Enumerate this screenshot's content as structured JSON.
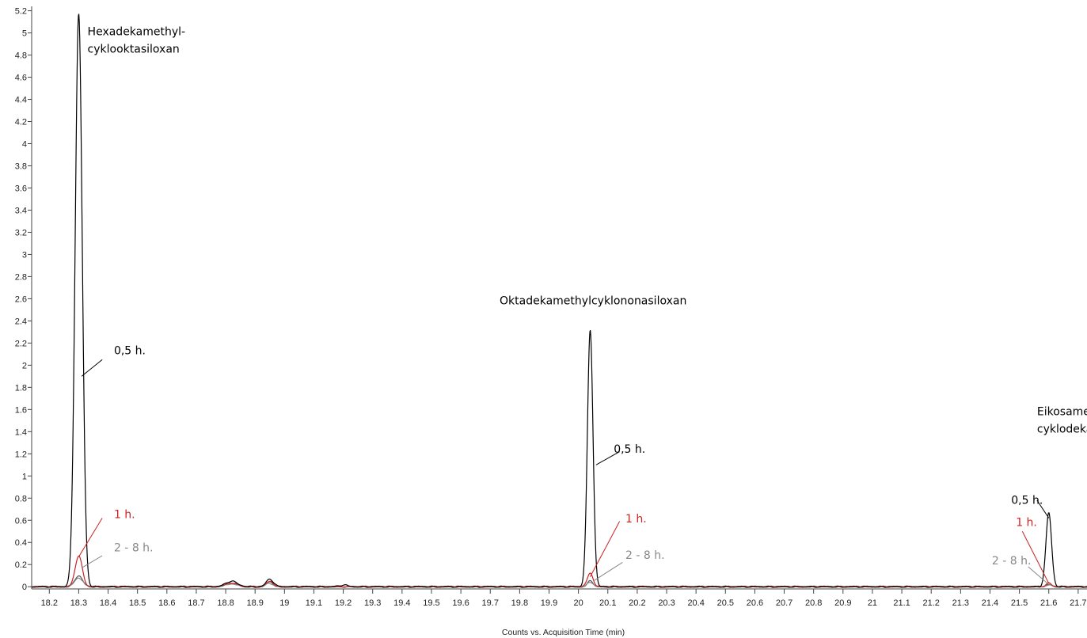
{
  "chart_data": {
    "type": "line",
    "xlabel": "Counts vs. Acquisition Time (min)",
    "ylabel": "",
    "xlim": [
      18.14,
      21.73
    ],
    "ylim": [
      -0.22,
      5.24
    ],
    "x_ticks": [
      18.2,
      18.3,
      18.4,
      18.5,
      18.6,
      18.7,
      18.8,
      18.9,
      19.0,
      19.1,
      19.2,
      19.3,
      19.4,
      19.5,
      19.6,
      19.7,
      19.8,
      19.9,
      20.0,
      20.1,
      20.2,
      20.3,
      20.4,
      20.5,
      20.6,
      20.7,
      20.8,
      20.9,
      21.0,
      21.1,
      21.2,
      21.3,
      21.4,
      21.5,
      21.6,
      21.7
    ],
    "x_tick_labels": [
      "18.2",
      "18.3",
      "18.4",
      "18.5",
      "18.6",
      "18.7",
      "18.8",
      "18.9",
      "19",
      "19.1",
      "19.2",
      "19.3",
      "19.4",
      "19.5",
      "19.6",
      "19.7",
      "19.8",
      "19.9",
      "20",
      "20.1",
      "20.2",
      "20.3",
      "20.4",
      "20.5",
      "20.6",
      "20.7",
      "20.8",
      "20.9",
      "21",
      "21.1",
      "21.2",
      "21.3",
      "21.4",
      "21.5",
      "21.6",
      "21.7"
    ],
    "y_ticks": [
      0,
      0.2,
      0.4,
      0.6,
      0.8,
      1.0,
      1.2,
      1.4,
      1.6,
      1.8,
      2.0,
      2.2,
      2.4,
      2.6,
      2.8,
      3.0,
      3.2,
      3.4,
      3.6,
      3.8,
      4.0,
      4.2,
      4.4,
      4.6,
      4.8,
      5.0,
      5.2
    ],
    "y_tick_labels": [
      "0",
      "0.2",
      "0.4",
      "0.6",
      "0.8",
      "1",
      "1.2",
      "1.4",
      "1.6",
      "1.8",
      "2",
      "2.2",
      "2.4",
      "2.6",
      "2.8",
      "3",
      "3.2",
      "3.4",
      "3.6",
      "3.8",
      "4",
      "4.2",
      "4.4",
      "4.6",
      "4.8",
      "5",
      "5.2"
    ],
    "grid": false,
    "legend": "none",
    "series": [
      {
        "color": "#555555",
        "peaks": [
          {
            "x": 18.3,
            "height": 0.1,
            "sigma": 0.013
          },
          {
            "x": 18.82,
            "height": 0.03,
            "sigma": 0.02
          },
          {
            "x": 18.95,
            "height": 0.04,
            "sigma": 0.012
          },
          {
            "x": 20.04,
            "height": 0.05,
            "sigma": 0.01
          },
          {
            "x": 21.6,
            "height": 0.02,
            "sigma": 0.01
          }
        ]
      },
      {
        "color": "#888888",
        "peaks": [
          {
            "x": 18.3,
            "height": 0.08,
            "sigma": 0.014
          },
          {
            "x": 18.82,
            "height": 0.025,
            "sigma": 0.02
          },
          {
            "x": 18.95,
            "height": 0.03,
            "sigma": 0.012
          },
          {
            "x": 20.04,
            "height": 0.04,
            "sigma": 0.01
          },
          {
            "x": 21.6,
            "height": 0.015,
            "sigma": 0.01
          }
        ]
      },
      {
        "color": "#cc2222",
        "peaks": [
          {
            "x": 18.3,
            "height": 0.28,
            "sigma": 0.012
          },
          {
            "x": 18.82,
            "height": 0.035,
            "sigma": 0.02
          },
          {
            "x": 18.95,
            "height": 0.05,
            "sigma": 0.012
          },
          {
            "x": 20.04,
            "height": 0.12,
            "sigma": 0.01
          },
          {
            "x": 21.6,
            "height": 0.03,
            "sigma": 0.01
          }
        ]
      },
      {
        "color": "#000000",
        "peaks": [
          {
            "x": 18.3,
            "height": 5.17,
            "sigma": 0.012
          },
          {
            "x": 18.82,
            "height": 0.05,
            "sigma": 0.02
          },
          {
            "x": 18.95,
            "height": 0.07,
            "sigma": 0.012
          },
          {
            "x": 19.2,
            "height": 0.015,
            "sigma": 0.015
          },
          {
            "x": 20.04,
            "height": 2.32,
            "sigma": 0.0095
          },
          {
            "x": 21.6,
            "height": 0.67,
            "sigma": 0.0095
          }
        ]
      }
    ],
    "annotations": [
      {
        "id": "hexa-label",
        "lines": [
          "Hexadekamethyl-",
          "cyklooktasiloxan"
        ],
        "x": 18.33,
        "y": 4.98,
        "color": "#000000",
        "anchor": "start"
      },
      {
        "id": "okta-label",
        "lines": [
          "Oktadekamethylcyklononasiloxan"
        ],
        "x": 20.05,
        "y": 2.55,
        "color": "#000000",
        "anchor": "middle"
      },
      {
        "id": "eikosa-label",
        "lines": [
          "Eikosamethyl-",
          "cyklodekasiloxan"
        ],
        "x": 21.56,
        "y": 1.55,
        "color": "#000000",
        "anchor": "start"
      },
      {
        "id": "hexa-05h",
        "lines": [
          "0,5 h."
        ],
        "x": 18.42,
        "y": 2.1,
        "color": "#000000",
        "anchor": "start",
        "leader": [
          18.38,
          2.05,
          18.31,
          1.9
        ]
      },
      {
        "id": "hexa-1h",
        "lines": [
          "1 h."
        ],
        "x": 18.42,
        "y": 0.62,
        "color": "#cc2222",
        "anchor": "start",
        "leader": [
          18.38,
          0.62,
          18.3,
          0.27
        ]
      },
      {
        "id": "hexa-28h",
        "lines": [
          "2 - 8 h."
        ],
        "x": 18.42,
        "y": 0.32,
        "color": "#888888",
        "anchor": "start",
        "leader": [
          18.38,
          0.28,
          18.31,
          0.17
        ]
      },
      {
        "id": "okta-05h",
        "lines": [
          "0,5 h."
        ],
        "x": 20.12,
        "y": 1.21,
        "color": "#000000",
        "anchor": "start",
        "leader": [
          20.14,
          1.22,
          20.06,
          1.1
        ]
      },
      {
        "id": "okta-1h",
        "lines": [
          "1 h."
        ],
        "x": 20.16,
        "y": 0.58,
        "color": "#cc2222",
        "anchor": "start",
        "leader": [
          20.14,
          0.59,
          20.04,
          0.09
        ]
      },
      {
        "id": "okta-28h",
        "lines": [
          "2 - 8 h."
        ],
        "x": 20.16,
        "y": 0.25,
        "color": "#888888",
        "anchor": "start",
        "leader": [
          20.15,
          0.22,
          20.05,
          0.05
        ]
      },
      {
        "id": "eikosa-05h",
        "lines": [
          "0,5 h."
        ],
        "x": 21.58,
        "y": 0.75,
        "color": "#000000",
        "anchor": "end",
        "leader": [
          21.56,
          0.78,
          21.6,
          0.62
        ]
      },
      {
        "id": "eikosa-1h",
        "lines": [
          "1 h."
        ],
        "x": 21.56,
        "y": 0.55,
        "color": "#cc2222",
        "anchor": "end",
        "leader": [
          21.51,
          0.5,
          21.6,
          0.03
        ]
      },
      {
        "id": "eikosa-28h",
        "lines": [
          "2 - 8 h."
        ],
        "x": 21.54,
        "y": 0.2,
        "color": "#888888",
        "anchor": "end",
        "leader": [
          21.53,
          0.18,
          21.6,
          0.02
        ]
      }
    ]
  }
}
